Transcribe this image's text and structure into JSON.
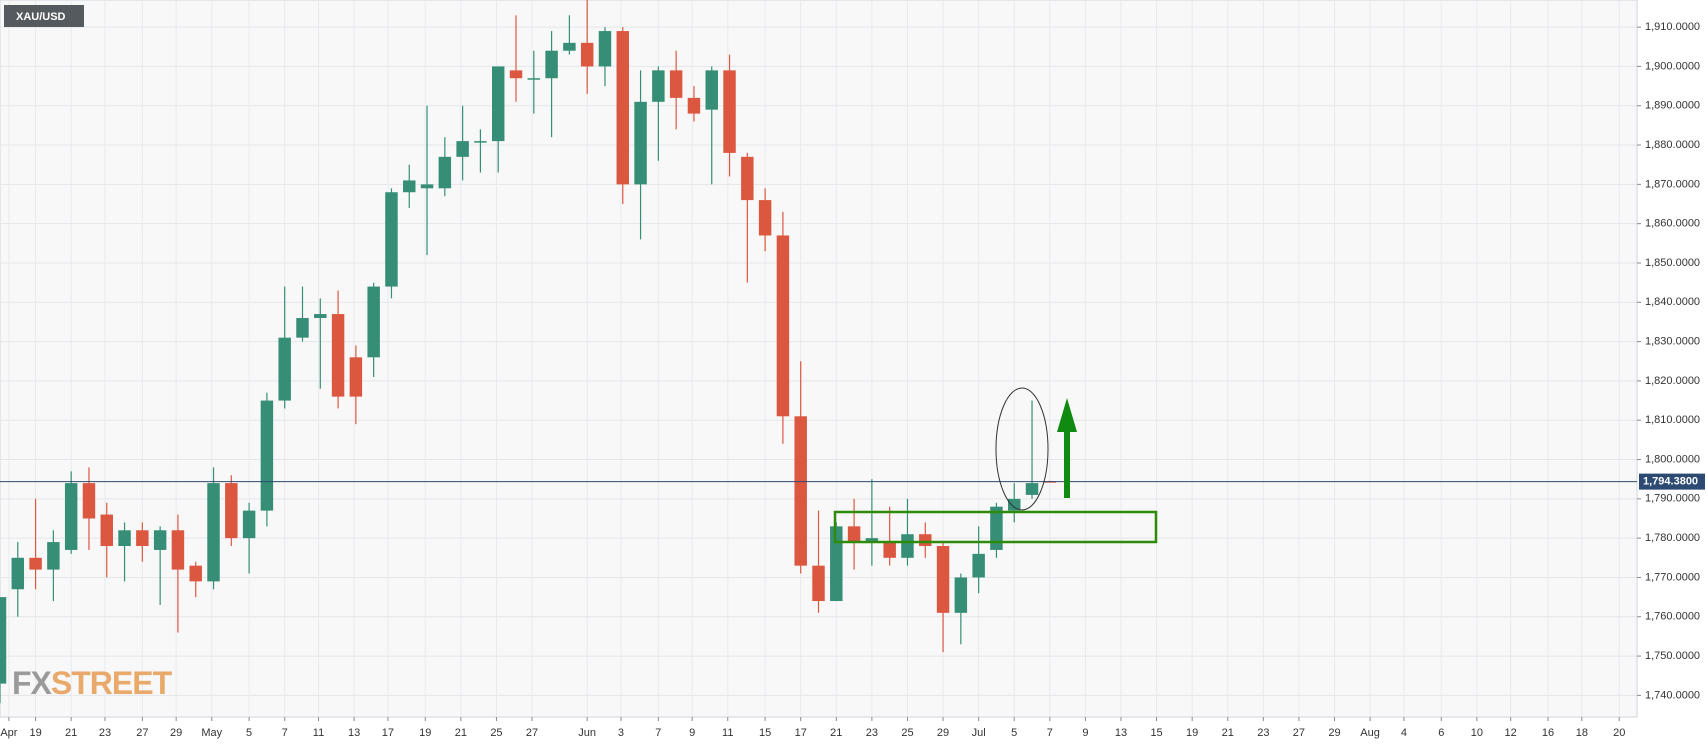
{
  "chart_data": {
    "type": "candlestick",
    "title": "XAU/USD",
    "watermark": [
      "FX",
      "STREET"
    ],
    "up_color": "#358e75",
    "down_color": "#dc5740",
    "grid": true,
    "xlim": [
      0,
      92
    ],
    "ylim": [
      1734.5,
      1916.9
    ],
    "yticks": [
      {
        "value": 1740,
        "label": "1,740.0000"
      },
      {
        "value": 1750,
        "label": "1,750.0000"
      },
      {
        "value": 1760,
        "label": "1,760.0000"
      },
      {
        "value": 1770,
        "label": "1,770.0000"
      },
      {
        "value": 1780,
        "label": "1,780.0000"
      },
      {
        "value": 1790,
        "label": "1,790.0000"
      },
      {
        "value": 1800,
        "label": "1,800.0000"
      },
      {
        "value": 1810,
        "label": "1,810.0000"
      },
      {
        "value": 1820,
        "label": "1,820.0000"
      },
      {
        "value": 1830,
        "label": "1,830.0000"
      },
      {
        "value": 1840,
        "label": "1,840.0000"
      },
      {
        "value": 1850,
        "label": "1,850.0000"
      },
      {
        "value": 1860,
        "label": "1,860.0000"
      },
      {
        "value": 1870,
        "label": "1,870.0000"
      },
      {
        "value": 1880,
        "label": "1,880.0000"
      },
      {
        "value": 1890,
        "label": "1,890.0000"
      },
      {
        "value": 1900,
        "label": "1,900.0000"
      },
      {
        "value": 1910,
        "label": "1,910.0000"
      }
    ],
    "xticks": [
      {
        "value": 0.5,
        "label": "Apr"
      },
      {
        "value": 2,
        "label": "19"
      },
      {
        "value": 4,
        "label": "21"
      },
      {
        "value": 5.9,
        "label": "23"
      },
      {
        "value": 8,
        "label": "27"
      },
      {
        "value": 9.9,
        "label": "29"
      },
      {
        "value": 11.9,
        "label": "May"
      },
      {
        "value": 14,
        "label": "5"
      },
      {
        "value": 16,
        "label": "7"
      },
      {
        "value": 17.9,
        "label": "11"
      },
      {
        "value": 19.9,
        "label": "13"
      },
      {
        "value": 21.8,
        "label": "17"
      },
      {
        "value": 23.9,
        "label": "19"
      },
      {
        "value": 25.9,
        "label": "21"
      },
      {
        "value": 27.9,
        "label": "25"
      },
      {
        "value": 29.9,
        "label": "27"
      },
      {
        "value": 33,
        "label": "Jun"
      },
      {
        "value": 34.9,
        "label": "3"
      },
      {
        "value": 37,
        "label": "7"
      },
      {
        "value": 38.9,
        "label": "9"
      },
      {
        "value": 40.9,
        "label": "11"
      },
      {
        "value": 43,
        "label": "15"
      },
      {
        "value": 45,
        "label": "17"
      },
      {
        "value": 47,
        "label": "21"
      },
      {
        "value": 49,
        "label": "23"
      },
      {
        "value": 51,
        "label": "25"
      },
      {
        "value": 53,
        "label": "29"
      },
      {
        "value": 55,
        "label": "Jul"
      },
      {
        "value": 57,
        "label": "5"
      },
      {
        "value": 59,
        "label": "7"
      },
      {
        "value": 61,
        "label": "9"
      },
      {
        "value": 63,
        "label": "13"
      },
      {
        "value": 65,
        "label": "15"
      },
      {
        "value": 67,
        "label": "19"
      },
      {
        "value": 69,
        "label": "21"
      },
      {
        "value": 71,
        "label": "23"
      },
      {
        "value": 73,
        "label": "27"
      },
      {
        "value": 75,
        "label": "29"
      },
      {
        "value": 77,
        "label": "Aug"
      },
      {
        "value": 78.9,
        "label": "4"
      },
      {
        "value": 81,
        "label": "6"
      },
      {
        "value": 83,
        "label": "10"
      },
      {
        "value": 84.9,
        "label": "12"
      },
      {
        "value": 87,
        "label": "16"
      },
      {
        "value": 88.9,
        "label": "18"
      },
      {
        "value": 91,
        "label": "20"
      }
    ],
    "last_price": {
      "value": 1794.38,
      "label": "1,794.3800"
    },
    "candles": {
      "x": [
        0,
        1,
        2,
        3,
        4,
        5,
        6,
        7,
        8,
        9,
        10,
        11,
        12,
        13,
        14,
        15,
        16,
        17,
        18,
        19,
        20,
        21,
        22,
        23,
        24,
        25,
        26,
        27,
        28,
        29,
        30,
        31,
        32,
        33,
        34,
        35,
        36,
        37,
        38,
        39,
        40,
        41,
        42,
        43,
        44,
        45,
        46,
        47,
        48,
        49,
        50,
        51,
        52,
        53,
        54,
        55,
        56,
        57,
        58,
        59
      ],
      "open": [
        1743,
        1767,
        1775,
        1772,
        1777,
        1794,
        1786,
        1778,
        1782,
        1777,
        1782,
        1773,
        1769,
        1794,
        1780,
        1787,
        1815,
        1831,
        1836,
        1837,
        1826,
        1826,
        1844,
        1868,
        1869,
        1869,
        1877,
        1881,
        1881,
        1899,
        1897,
        1897,
        1904,
        1906,
        1900,
        1909,
        1870,
        1891,
        1899,
        1892,
        1889,
        1899,
        1877,
        1866,
        1857,
        1811,
        1773,
        1764,
        1783,
        1779,
        1779,
        1775,
        1781,
        1778,
        1761,
        1770,
        1777,
        1787,
        1791,
        1794.5
      ],
      "high": [
        1765,
        1779,
        1790,
        1782,
        1797,
        1798,
        1789,
        1784,
        1784,
        1783,
        1786,
        1774,
        1798,
        1796,
        1789,
        1817,
        1844,
        1844,
        1841,
        1843,
        1829,
        1845,
        1869,
        1875,
        1890,
        1882,
        1890,
        1884,
        1900,
        1913,
        1904,
        1909,
        1913,
        1917,
        1910,
        1910,
        1899,
        1900,
        1904,
        1895,
        1900,
        1903,
        1878,
        1869,
        1863,
        1825,
        1787,
        1784,
        1790,
        1795,
        1788,
        1790,
        1784,
        1779,
        1771,
        1783,
        1789,
        1794,
        1815,
        1794.6
      ],
      "low": [
        1738,
        1760,
        1767,
        1764,
        1776,
        1777,
        1770,
        1769,
        1774,
        1763,
        1756,
        1765,
        1767,
        1778,
        1771,
        1783,
        1813,
        1830,
        1818,
        1813,
        1809,
        1821,
        1841,
        1864,
        1852,
        1867,
        1871,
        1873,
        1873,
        1891,
        1888,
        1882,
        1903,
        1893,
        1895,
        1865,
        1856,
        1876,
        1884,
        1886,
        1870,
        1872,
        1845,
        1853,
        1804,
        1771,
        1761,
        1764,
        1772,
        1773,
        1773,
        1773,
        1775,
        1751,
        1753,
        1766,
        1775,
        1784,
        1790,
        1794.3
      ],
      "close": [
        1765,
        1775,
        1772,
        1779,
        1794,
        1785,
        1778,
        1782,
        1778,
        1782,
        1772,
        1769,
        1794,
        1780,
        1787,
        1815,
        1831,
        1836,
        1837,
        1816,
        1816,
        1844,
        1868,
        1871,
        1870,
        1877,
        1881,
        1881,
        1900,
        1897,
        1897,
        1904,
        1906,
        1900,
        1909,
        1870,
        1891,
        1899,
        1892,
        1888,
        1899,
        1878,
        1866,
        1857,
        1811,
        1773,
        1764,
        1783,
        1779,
        1780,
        1775,
        1781,
        1778,
        1761,
        1770,
        1776,
        1788,
        1790,
        1794,
        1794.4
      ]
    }
  }
}
